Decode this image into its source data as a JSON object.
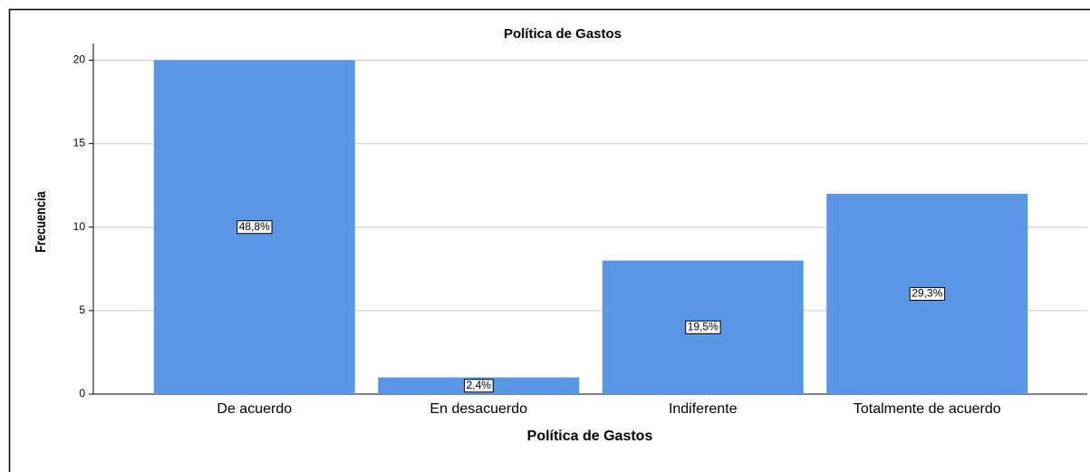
{
  "chart_data": {
    "type": "bar",
    "title": "Política de Gastos",
    "x_label": "Política de Gastos",
    "y_label": "Frecuencia",
    "categories": [
      "De acuerdo",
      "En desacuerdo",
      "Indiferente",
      "Totalmente de acuerdo"
    ],
    "values": [
      20,
      1,
      8,
      12
    ],
    "percent_labels": [
      "48,8%",
      "2,4%",
      "19,5%",
      "29,3%"
    ],
    "color": "#5a96e6",
    "ylim": [
      0,
      21
    ],
    "yticks": [
      0,
      5,
      10,
      15,
      20
    ],
    "grid": true
  }
}
